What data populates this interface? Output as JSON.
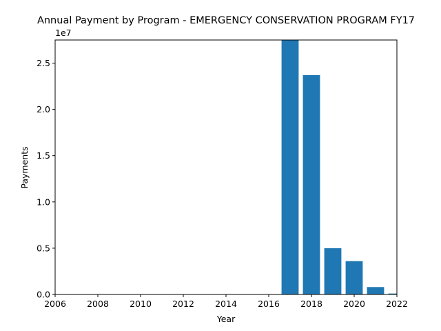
{
  "chart_data": {
    "type": "bar",
    "title": "Annual Payment by Program - EMERGENCY CONSERVATION PROGRAM FY17",
    "xlabel": "Year",
    "ylabel": "Payments",
    "y_offset_label": "1e7",
    "x_ticks": [
      "2006",
      "2008",
      "2010",
      "2012",
      "2014",
      "2016",
      "2018",
      "2020",
      "2022"
    ],
    "y_ticks": [
      "0.0",
      "0.5",
      "1.0",
      "1.5",
      "2.0",
      "2.5"
    ],
    "xlim": [
      2006,
      2022
    ],
    "ylim": [
      0,
      27500000
    ],
    "bar_color": "#1f77b4",
    "series": [
      {
        "x": [
          2017,
          2018,
          2019,
          2020,
          2021,
          2022
        ],
        "values": [
          27600000,
          23700000,
          5000000,
          3600000,
          800000,
          100000
        ]
      }
    ],
    "grid": false,
    "legend": "none"
  }
}
